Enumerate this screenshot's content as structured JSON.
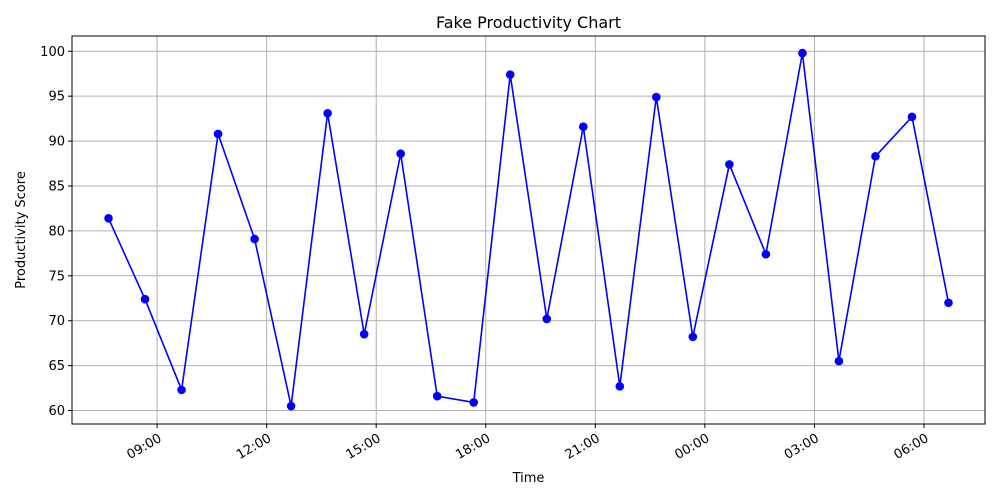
{
  "chart_data": {
    "type": "line",
    "title": "Fake Productivity Chart",
    "xlabel": "Time",
    "ylabel": "Productivity Score",
    "grid": true,
    "series": [
      {
        "name": "Productivity Score",
        "color": "#0000ff",
        "marker": "circle",
        "x": [
          7.67,
          8.67,
          9.67,
          10.67,
          11.67,
          12.67,
          13.67,
          14.67,
          15.67,
          16.67,
          17.67,
          18.67,
          19.67,
          20.67,
          21.67,
          22.67,
          23.67,
          24.67,
          25.67,
          26.67,
          27.67,
          28.67,
          29.67,
          30.67
        ],
        "values": [
          81.4,
          72.4,
          62.3,
          90.8,
          79.1,
          60.5,
          93.1,
          68.5,
          88.6,
          61.6,
          60.9,
          97.4,
          70.2,
          91.6,
          62.7,
          94.9,
          68.2,
          87.4,
          77.4,
          99.8,
          65.5,
          88.3,
          92.7,
          72.0
        ]
      }
    ],
    "xlim": [
      6.67,
      31.67
    ],
    "ylim": [
      58.5,
      101.7
    ],
    "x_ticks": [
      {
        "value": 9,
        "label": "09:00"
      },
      {
        "value": 12,
        "label": "12:00"
      },
      {
        "value": 15,
        "label": "15:00"
      },
      {
        "value": 18,
        "label": "18:00"
      },
      {
        "value": 21,
        "label": "21:00"
      },
      {
        "value": 24,
        "label": "00:00"
      },
      {
        "value": 27,
        "label": "03:00"
      },
      {
        "value": 30,
        "label": "06:00"
      }
    ],
    "y_ticks": [
      {
        "value": 60,
        "label": "60"
      },
      {
        "value": 65,
        "label": "65"
      },
      {
        "value": 70,
        "label": "70"
      },
      {
        "value": 75,
        "label": "75"
      },
      {
        "value": 80,
        "label": "80"
      },
      {
        "value": 85,
        "label": "85"
      },
      {
        "value": 90,
        "label": "90"
      },
      {
        "value": 95,
        "label": "95"
      },
      {
        "value": 100,
        "label": "100"
      }
    ]
  }
}
